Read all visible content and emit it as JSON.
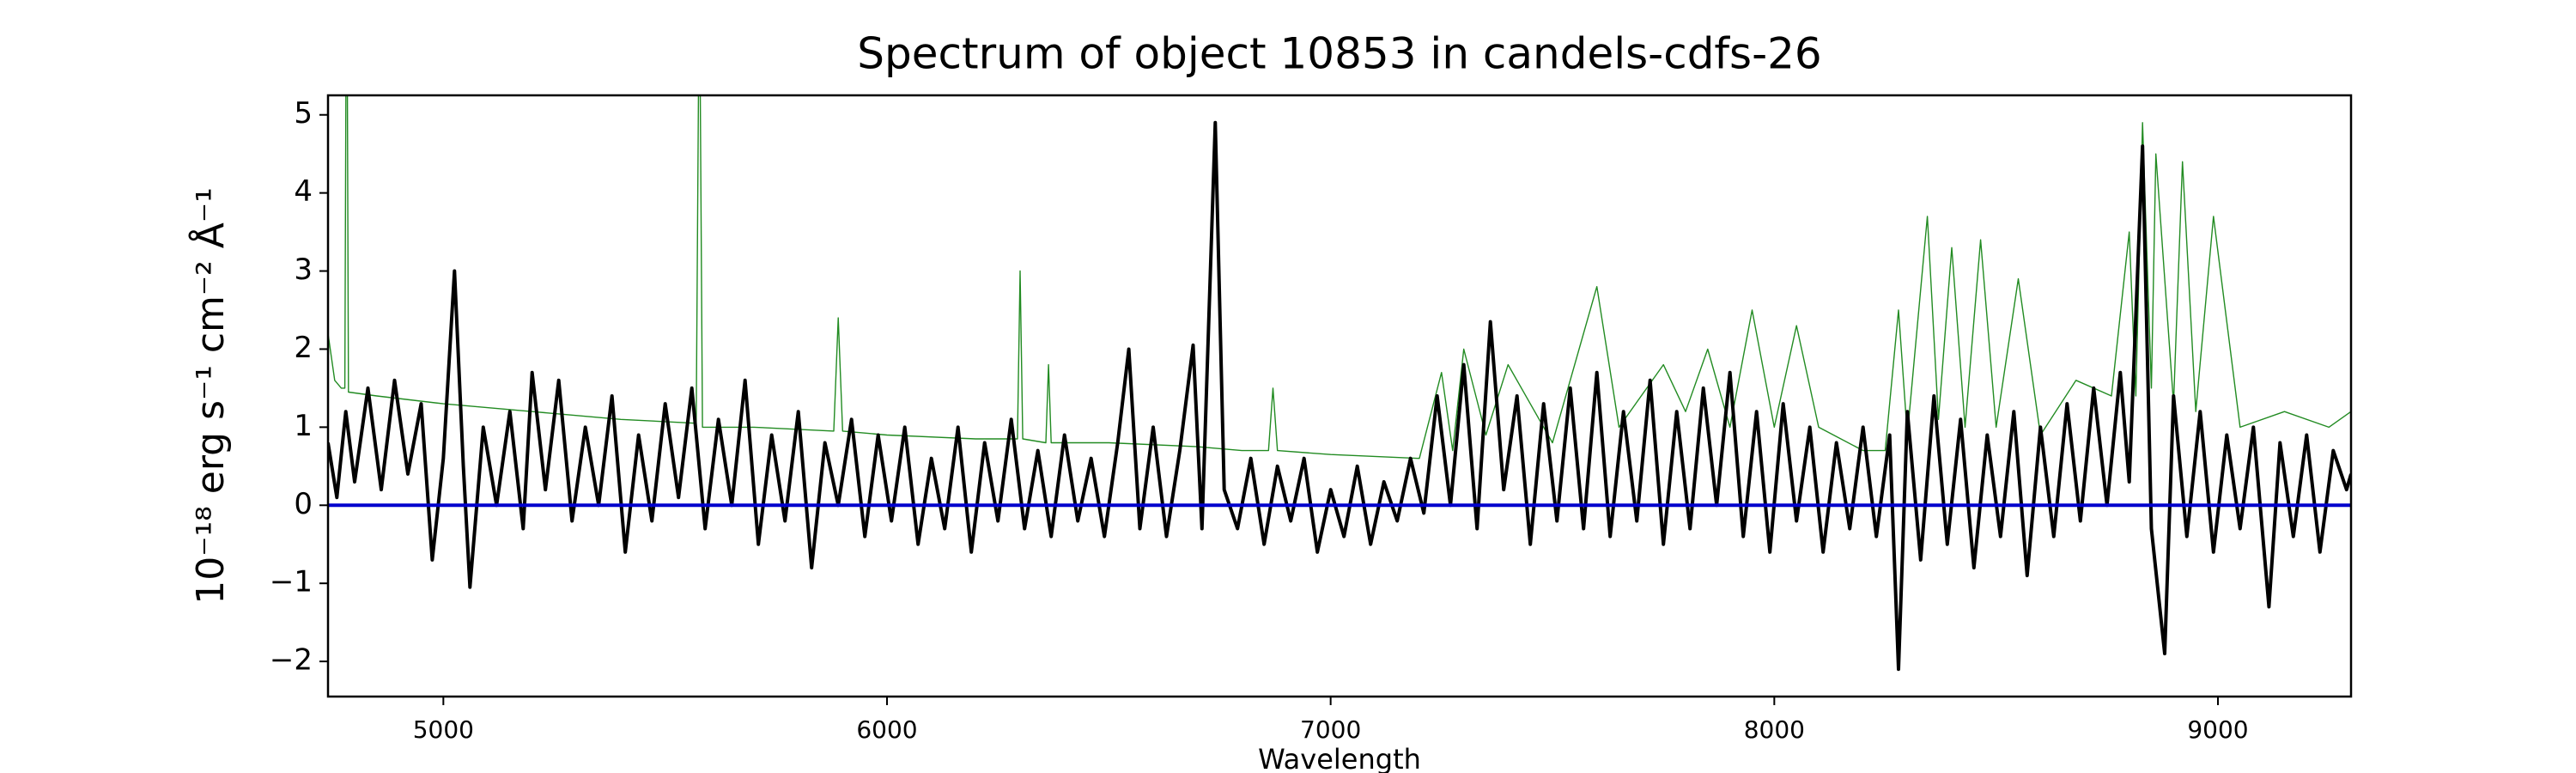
{
  "chart_data": {
    "type": "line",
    "title": "Spectrum of object 10853 in candels-cdfs-26",
    "x_label": "Wavelength",
    "y_label": "10⁻¹⁸ erg s⁻¹ cm⁻² Å⁻¹",
    "xlim": [
      4740,
      9300
    ],
    "ylim": [
      -2.45,
      5.25
    ],
    "xticks": [
      5000,
      6000,
      7000,
      8000,
      9000
    ],
    "yticks": [
      {
        "value": -2,
        "label": "−2"
      },
      {
        "value": -1,
        "label": "−1"
      },
      0,
      1,
      2,
      3,
      4,
      5
    ],
    "grid": false,
    "series": [
      {
        "color": "#228b22",
        "width": 1.4,
        "x": [
          4740,
          4755,
          4770,
          4778,
          4782,
          4786,
          4850,
          5000,
          5200,
          5400,
          5570,
          5577,
          5584,
          5700,
          5880,
          5890,
          5900,
          6000,
          6200,
          6294,
          6300,
          6306,
          6358,
          6364,
          6370,
          6500,
          6700,
          6800,
          6860,
          6870,
          6880,
          7000,
          7200,
          7250,
          7275,
          7300,
          7350,
          7400,
          7500,
          7600,
          7650,
          7750,
          7800,
          7850,
          7900,
          7950,
          8000,
          8050,
          8100,
          8200,
          8250,
          8280,
          8300,
          8345,
          8370,
          8400,
          8430,
          8465,
          8500,
          8550,
          8600,
          8680,
          8760,
          8800,
          8815,
          8830,
          8850,
          8860,
          8900,
          8920,
          8950,
          8990,
          9050,
          9150,
          9250,
          9300
        ],
        "values": [
          2.2,
          1.6,
          1.5,
          1.5,
          8,
          1.45,
          1.4,
          1.3,
          1.2,
          1.1,
          1.05,
          7,
          1.0,
          1.0,
          0.95,
          2.4,
          0.95,
          0.9,
          0.85,
          0.85,
          3.0,
          0.85,
          0.8,
          1.8,
          0.8,
          0.8,
          0.75,
          0.7,
          0.7,
          1.5,
          0.7,
          0.65,
          0.6,
          1.7,
          0.7,
          2.0,
          0.9,
          1.8,
          0.8,
          2.8,
          1.0,
          1.8,
          1.2,
          2.0,
          1.0,
          2.5,
          1.0,
          2.3,
          1.0,
          0.7,
          0.7,
          2.5,
          0.9,
          3.7,
          1.1,
          3.3,
          1.0,
          3.4,
          1.0,
          2.9,
          0.9,
          1.6,
          1.4,
          3.5,
          1.4,
          4.9,
          1.5,
          4.5,
          1.3,
          4.4,
          1.2,
          3.7,
          1.0,
          1.2,
          1.0,
          1.2
        ]
      },
      {
        "color": "#000000",
        "width": 4,
        "x": [
          4740,
          4760,
          4780,
          4800,
          4830,
          4860,
          4890,
          4920,
          4950,
          4975,
          5000,
          5025,
          5045,
          5060,
          5090,
          5120,
          5150,
          5180,
          5200,
          5230,
          5260,
          5290,
          5320,
          5350,
          5380,
          5410,
          5440,
          5470,
          5500,
          5530,
          5560,
          5590,
          5620,
          5650,
          5680,
          5710,
          5740,
          5770,
          5800,
          5830,
          5860,
          5890,
          5920,
          5950,
          5980,
          6010,
          6040,
          6070,
          6100,
          6130,
          6160,
          6190,
          6220,
          6250,
          6280,
          6310,
          6340,
          6370,
          6400,
          6430,
          6460,
          6490,
          6520,
          6545,
          6570,
          6600,
          6630,
          6660,
          6690,
          6710,
          6740,
          6760,
          6790,
          6820,
          6850,
          6880,
          6910,
          6940,
          6970,
          7000,
          7030,
          7060,
          7090,
          7120,
          7150,
          7180,
          7210,
          7240,
          7270,
          7300,
          7330,
          7360,
          7390,
          7420,
          7450,
          7480,
          7510,
          7540,
          7570,
          7600,
          7630,
          7660,
          7690,
          7720,
          7750,
          7780,
          7810,
          7840,
          7870,
          7900,
          7930,
          7960,
          7990,
          8020,
          8050,
          8080,
          8110,
          8140,
          8170,
          8200,
          8230,
          8260,
          8280,
          8300,
          8330,
          8360,
          8390,
          8420,
          8450,
          8480,
          8510,
          8540,
          8570,
          8600,
          8630,
          8660,
          8690,
          8720,
          8750,
          8780,
          8800,
          8830,
          8850,
          8880,
          8900,
          8930,
          8960,
          8990,
          9020,
          9050,
          9080,
          9115,
          9140,
          9170,
          9200,
          9230,
          9260,
          9290,
          9300
        ],
        "values": [
          0.8,
          0.1,
          1.2,
          0.3,
          1.5,
          0.2,
          1.6,
          0.4,
          1.3,
          -0.7,
          0.6,
          3.0,
          0.5,
          -1.05,
          1.0,
          0.0,
          1.2,
          -0.3,
          1.7,
          0.2,
          1.6,
          -0.2,
          1.0,
          0.0,
          1.4,
          -0.6,
          0.9,
          -0.2,
          1.3,
          0.1,
          1.5,
          -0.3,
          1.1,
          0.0,
          1.6,
          -0.5,
          0.9,
          -0.2,
          1.2,
          -0.8,
          0.8,
          0.0,
          1.1,
          -0.4,
          0.9,
          -0.2,
          1.0,
          -0.5,
          0.6,
          -0.3,
          1.0,
          -0.6,
          0.8,
          -0.2,
          1.1,
          -0.3,
          0.7,
          -0.4,
          0.9,
          -0.2,
          0.6,
          -0.4,
          0.8,
          2.0,
          -0.3,
          1.0,
          -0.4,
          0.7,
          2.05,
          -0.3,
          4.9,
          0.2,
          -0.3,
          0.6,
          -0.5,
          0.5,
          -0.2,
          0.6,
          -0.6,
          0.2,
          -0.4,
          0.5,
          -0.5,
          0.3,
          -0.2,
          0.6,
          -0.1,
          1.4,
          0.0,
          1.8,
          -0.3,
          2.35,
          0.2,
          1.4,
          -0.5,
          1.3,
          -0.2,
          1.5,
          -0.3,
          1.7,
          -0.4,
          1.2,
          -0.2,
          1.6,
          -0.5,
          1.2,
          -0.3,
          1.5,
          0.0,
          1.7,
          -0.4,
          1.2,
          -0.6,
          1.3,
          -0.2,
          1.0,
          -0.6,
          0.8,
          -0.3,
          1.0,
          -0.4,
          0.9,
          -2.1,
          1.2,
          -0.7,
          1.4,
          -0.5,
          1.1,
          -0.8,
          0.9,
          -0.4,
          1.2,
          -0.9,
          1.0,
          -0.4,
          1.3,
          -0.2,
          1.5,
          0.0,
          1.7,
          0.3,
          4.6,
          -0.3,
          -1.9,
          1.4,
          -0.4,
          1.2,
          -0.6,
          0.9,
          -0.3,
          1.0,
          -1.3,
          0.8,
          -0.4,
          0.9,
          -0.6,
          0.7,
          0.2,
          0.4
        ]
      },
      {
        "color": "#0000cd",
        "width": 4,
        "x": [
          4740,
          9300
        ],
        "values": [
          0,
          0
        ]
      }
    ]
  }
}
